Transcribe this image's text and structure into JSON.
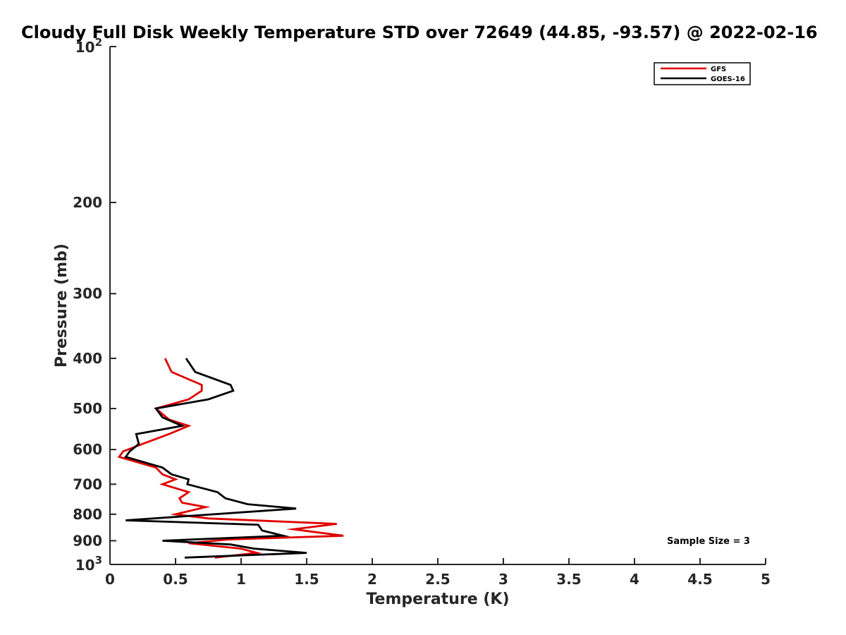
{
  "chart_data": {
    "type": "line",
    "title": "Cloudy Full Disk Weekly Temperature STD over 72649 (44.85, -93.57) @ 2022-02-16",
    "xlabel": "Temperature (K)",
    "ylabel": "Pressure (mb)",
    "xlim": [
      0,
      5
    ],
    "ylim": [
      100,
      1000
    ],
    "y_scale": "log",
    "y_reversed": true,
    "grid": false,
    "legend_position": "top-right",
    "x_ticks": [
      {
        "value": 0,
        "label": "0"
      },
      {
        "value": 0.5,
        "label": "0.5"
      },
      {
        "value": 1,
        "label": "1"
      },
      {
        "value": 1.5,
        "label": "1.5"
      },
      {
        "value": 2,
        "label": "2"
      },
      {
        "value": 2.5,
        "label": "2.5"
      },
      {
        "value": 3,
        "label": "3"
      },
      {
        "value": 3.5,
        "label": "3.5"
      },
      {
        "value": 4,
        "label": "4"
      },
      {
        "value": 4.5,
        "label": "4.5"
      },
      {
        "value": 5,
        "label": "5"
      }
    ],
    "y_ticks": [
      {
        "value": 100,
        "label": "",
        "base": "10",
        "exp": "2"
      },
      {
        "value": 200,
        "label": "200"
      },
      {
        "value": 300,
        "label": "300"
      },
      {
        "value": 400,
        "label": "400"
      },
      {
        "value": 500,
        "label": "500"
      },
      {
        "value": 600,
        "label": "600"
      },
      {
        "value": 700,
        "label": "700"
      },
      {
        "value": 800,
        "label": "800"
      },
      {
        "value": 900,
        "label": "900"
      },
      {
        "value": 1000,
        "label": "",
        "base": "10",
        "exp": "3"
      }
    ],
    "series": [
      {
        "name": "GFS",
        "color": "#e00000",
        "points": [
          [
            0.42,
            400
          ],
          [
            0.47,
            425
          ],
          [
            0.7,
            450
          ],
          [
            0.7,
            462
          ],
          [
            0.6,
            480
          ],
          [
            0.35,
            500
          ],
          [
            0.45,
            525
          ],
          [
            0.6,
            540
          ],
          [
            0.45,
            560
          ],
          [
            0.25,
            585
          ],
          [
            0.1,
            605
          ],
          [
            0.07,
            620
          ],
          [
            0.35,
            650
          ],
          [
            0.4,
            670
          ],
          [
            0.5,
            685
          ],
          [
            0.4,
            700
          ],
          [
            0.6,
            725
          ],
          [
            0.53,
            745
          ],
          [
            0.55,
            760
          ],
          [
            0.73,
            775
          ],
          [
            0.5,
            800
          ],
          [
            0.75,
            815
          ],
          [
            1.73,
            835
          ],
          [
            1.4,
            855
          ],
          [
            1.78,
            880
          ],
          [
            0.9,
            895
          ],
          [
            0.6,
            910
          ],
          [
            1.0,
            932
          ],
          [
            1.12,
            950
          ],
          [
            0.8,
            970
          ]
        ]
      },
      {
        "name": "GOES-16",
        "color": "#000000",
        "points": [
          [
            0.58,
            400
          ],
          [
            0.65,
            425
          ],
          [
            0.92,
            450
          ],
          [
            0.94,
            462
          ],
          [
            0.75,
            480
          ],
          [
            0.35,
            500
          ],
          [
            0.4,
            520
          ],
          [
            0.55,
            540
          ],
          [
            0.2,
            560
          ],
          [
            0.22,
            585
          ],
          [
            0.15,
            605
          ],
          [
            0.12,
            620
          ],
          [
            0.4,
            650
          ],
          [
            0.47,
            670
          ],
          [
            0.6,
            685
          ],
          [
            0.59,
            700
          ],
          [
            0.82,
            725
          ],
          [
            0.88,
            745
          ],
          [
            1.05,
            765
          ],
          [
            1.42,
            780
          ],
          [
            0.12,
            822
          ],
          [
            1.13,
            838
          ],
          [
            1.16,
            860
          ],
          [
            1.32,
            880
          ],
          [
            0.4,
            900
          ],
          [
            0.92,
            915
          ],
          [
            1.1,
            932
          ],
          [
            1.5,
            950
          ],
          [
            0.57,
            970
          ]
        ]
      }
    ],
    "annotation": "Sample Size = 3"
  }
}
